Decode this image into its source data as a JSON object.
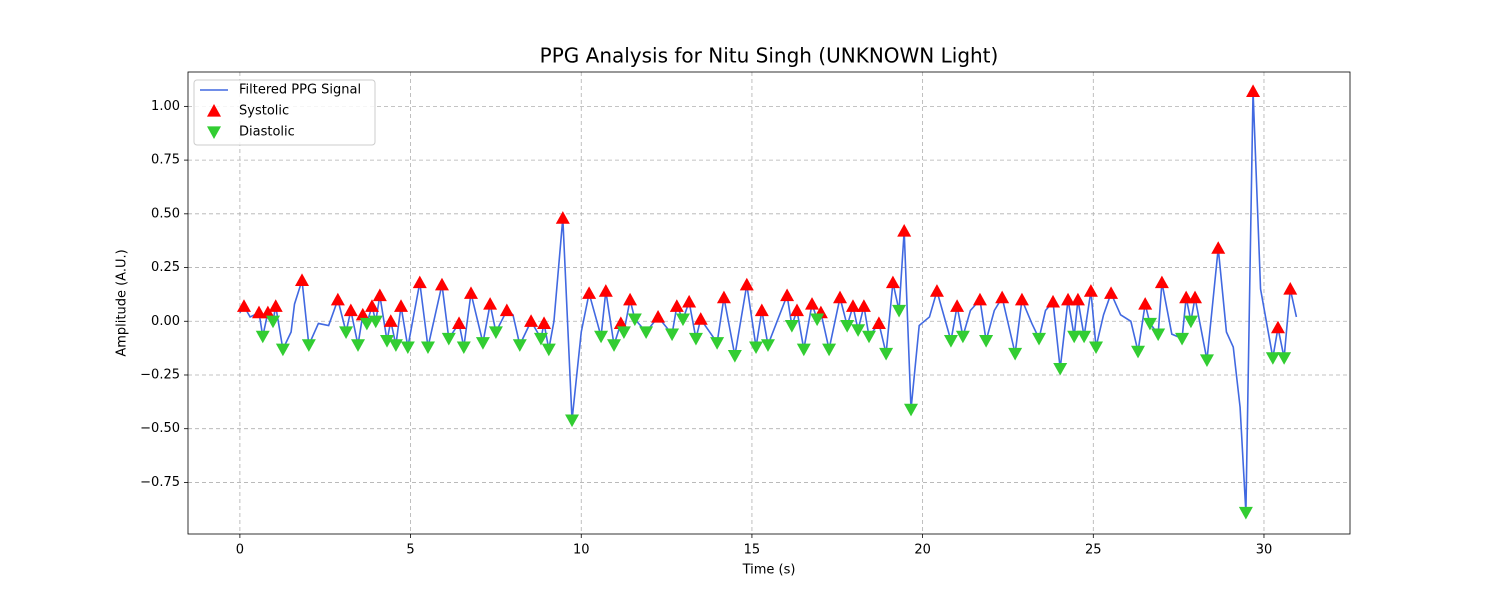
{
  "chart_data": {
    "type": "line",
    "title": "PPG Analysis for Nitu Singh (UNKNOWN Light)",
    "x_label": "Time (s)",
    "y_label": "Amplitude (A.U.)",
    "xlim": [
      -1.52,
      32.52
    ],
    "ylim": [
      -0.99,
      1.16
    ],
    "xticks": [
      0,
      5,
      10,
      15,
      20,
      25,
      30
    ],
    "yticks": [
      {
        "value": -0.75,
        "label": "−0.75"
      },
      {
        "value": -0.5,
        "label": "−0.50"
      },
      {
        "value": -0.25,
        "label": "−0.25"
      },
      {
        "value": 0,
        "label": "0.00"
      },
      {
        "value": 0.25,
        "label": "0.25"
      },
      {
        "value": 0.5,
        "label": "0.50"
      },
      {
        "value": 0.75,
        "label": "0.75"
      },
      {
        "value": 1,
        "label": "1.00"
      }
    ],
    "grid": true,
    "legend": "upper-left",
    "series": [
      {
        "name": "Filtered PPG Signal",
        "color": "#4169e1",
        "style": "line",
        "x": [
          0,
          0.12,
          0.3,
          0.56,
          0.67,
          0.82,
          0.97,
          1.05,
          1.26,
          1.5,
          1.6,
          1.82,
          2.02,
          2.3,
          2.6,
          2.87,
          3.11,
          3.25,
          3.46,
          3.6,
          3.72,
          3.87,
          3.98,
          4.1,
          4.31,
          4.42,
          4.57,
          4.72,
          4.92,
          5.27,
          5.51,
          5.92,
          6.12,
          6.42,
          6.56,
          6.77,
          7.12,
          7.33,
          7.5,
          7.82,
          8.0,
          8.2,
          8.53,
          8.82,
          8.91,
          9.05,
          9.2,
          9.46,
          9.73,
          10.0,
          10.23,
          10.58,
          10.72,
          10.96,
          11.16,
          11.25,
          11.43,
          11.57,
          11.9,
          12.25,
          12.66,
          12.8,
          12.98,
          13.16,
          13.36,
          13.5,
          13.98,
          14.18,
          14.5,
          14.85,
          15.12,
          15.29,
          15.47,
          16.03,
          16.17,
          16.32,
          16.52,
          16.76,
          16.91,
          17.02,
          17.26,
          17.58,
          17.79,
          17.96,
          18.11,
          18.28,
          18.43,
          18.72,
          18.93,
          19.13,
          19.31,
          19.46,
          19.66,
          19.9,
          20.2,
          20.42,
          20.83,
          21.01,
          21.18,
          21.4,
          21.68,
          21.86,
          22.1,
          22.33,
          22.71,
          22.91,
          23.2,
          23.41,
          23.6,
          23.82,
          24.03,
          24.26,
          24.44,
          24.55,
          24.73,
          24.93,
          25.08,
          25.3,
          25.52,
          25.8,
          26.1,
          26.31,
          26.52,
          26.66,
          26.9,
          27.01,
          27.3,
          27.6,
          27.72,
          27.86,
          27.98,
          28.33,
          28.66,
          28.9,
          29.1,
          29.3,
          29.47,
          29.68,
          29.9,
          30.26,
          30.41,
          30.59,
          30.77,
          30.95
        ],
        "values": [
          0.04,
          0.07,
          0.02,
          0.04,
          -0.07,
          0.04,
          0.0,
          0.07,
          -0.13,
          -0.05,
          0.08,
          0.19,
          -0.11,
          -0.01,
          -0.02,
          0.1,
          -0.05,
          0.05,
          -0.11,
          0.03,
          -0.01,
          0.07,
          0.0,
          0.12,
          -0.09,
          0.0,
          -0.11,
          0.07,
          -0.12,
          0.18,
          -0.12,
          0.17,
          -0.08,
          -0.01,
          -0.12,
          0.13,
          -0.1,
          0.08,
          -0.05,
          0.05,
          0.03,
          -0.11,
          0.0,
          -0.08,
          -0.01,
          -0.13,
          0.0,
          0.48,
          -0.46,
          -0.05,
          0.13,
          -0.07,
          0.14,
          -0.11,
          -0.01,
          -0.05,
          0.1,
          0.01,
          -0.05,
          0.02,
          -0.06,
          0.07,
          0.01,
          0.09,
          -0.08,
          0.01,
          -0.1,
          0.11,
          -0.16,
          0.17,
          -0.12,
          0.05,
          -0.11,
          0.12,
          -0.02,
          0.05,
          -0.13,
          0.08,
          0.01,
          0.04,
          -0.13,
          0.11,
          -0.02,
          0.07,
          -0.04,
          0.07,
          -0.07,
          -0.01,
          -0.15,
          0.18,
          0.05,
          0.42,
          -0.41,
          -0.02,
          0.02,
          0.14,
          -0.09,
          0.07,
          -0.07,
          0.05,
          0.1,
          -0.09,
          0.05,
          0.11,
          -0.15,
          0.1,
          -0.01,
          -0.08,
          0.05,
          0.09,
          -0.22,
          0.1,
          -0.07,
          0.1,
          -0.07,
          0.14,
          -0.12,
          0.03,
          0.13,
          0.03,
          0.0,
          -0.14,
          0.08,
          -0.01,
          -0.06,
          0.18,
          -0.06,
          -0.08,
          0.11,
          0.0,
          0.11,
          -0.18,
          0.34,
          -0.05,
          -0.12,
          -0.4,
          -0.89,
          1.07,
          0.15,
          -0.17,
          -0.03,
          -0.17,
          0.15,
          0.02
        ]
      },
      {
        "name": "Systolic",
        "color": "#ff0000",
        "style": "triangle-up",
        "x": [
          0.12,
          0.56,
          0.82,
          1.05,
          1.82,
          2.87,
          3.25,
          3.6,
          3.87,
          4.1,
          4.42,
          4.72,
          5.27,
          5.92,
          6.42,
          6.77,
          7.33,
          7.82,
          8.53,
          8.91,
          9.46,
          10.23,
          10.72,
          11.16,
          11.43,
          12.25,
          12.8,
          13.16,
          13.5,
          14.18,
          14.85,
          15.29,
          16.03,
          16.32,
          16.76,
          17.02,
          17.58,
          17.96,
          18.28,
          18.72,
          19.13,
          19.46,
          20.42,
          21.01,
          21.68,
          22.33,
          22.91,
          23.82,
          24.26,
          24.55,
          24.93,
          25.52,
          26.52,
          27.01,
          27.72,
          27.98,
          28.66,
          29.68,
          30.41,
          30.77
        ],
        "values": [
          0.07,
          0.04,
          0.04,
          0.07,
          0.19,
          0.1,
          0.05,
          0.03,
          0.07,
          0.12,
          0.0,
          0.07,
          0.18,
          0.17,
          -0.01,
          0.13,
          0.08,
          0.05,
          0.0,
          -0.01,
          0.48,
          0.13,
          0.14,
          -0.01,
          0.1,
          0.02,
          0.07,
          0.09,
          0.01,
          0.11,
          0.17,
          0.05,
          0.12,
          0.05,
          0.08,
          0.04,
          0.11,
          0.07,
          0.07,
          -0.01,
          0.18,
          0.42,
          0.14,
          0.07,
          0.1,
          0.11,
          0.1,
          0.09,
          0.1,
          0.1,
          0.14,
          0.13,
          0.08,
          0.18,
          0.11,
          0.11,
          0.34,
          1.07,
          -0.03,
          0.15
        ]
      },
      {
        "name": "Diastolic",
        "color": "#32cd32",
        "style": "triangle-down",
        "x": [
          0.67,
          0.97,
          1.26,
          2.02,
          3.11,
          3.46,
          3.72,
          3.98,
          4.31,
          4.57,
          4.92,
          5.51,
          6.12,
          6.56,
          7.12,
          7.5,
          8.2,
          8.82,
          9.05,
          9.73,
          10.58,
          10.96,
          11.25,
          11.57,
          11.9,
          12.66,
          12.98,
          13.36,
          13.98,
          14.5,
          15.12,
          15.47,
          16.17,
          16.52,
          16.91,
          17.26,
          17.79,
          18.11,
          18.43,
          18.93,
          19.31,
          19.66,
          20.83,
          21.18,
          21.86,
          22.71,
          23.41,
          24.03,
          24.44,
          24.73,
          25.08,
          26.31,
          26.66,
          26.9,
          27.6,
          27.86,
          28.33,
          29.47,
          30.26,
          30.59
        ],
        "values": [
          -0.07,
          0.0,
          -0.13,
          -0.11,
          -0.05,
          -0.11,
          -0.01,
          0.0,
          -0.09,
          -0.11,
          -0.12,
          -0.12,
          -0.08,
          -0.12,
          -0.1,
          -0.05,
          -0.11,
          -0.08,
          -0.13,
          -0.46,
          -0.07,
          -0.11,
          -0.05,
          0.01,
          -0.05,
          -0.06,
          0.01,
          -0.08,
          -0.1,
          -0.16,
          -0.12,
          -0.11,
          -0.02,
          -0.13,
          0.01,
          -0.13,
          -0.02,
          -0.04,
          -0.07,
          -0.15,
          0.05,
          -0.41,
          -0.09,
          -0.07,
          -0.09,
          -0.15,
          -0.08,
          -0.22,
          -0.07,
          -0.07,
          -0.12,
          -0.14,
          -0.01,
          -0.06,
          -0.08,
          0.0,
          -0.18,
          -0.89,
          -0.17,
          -0.17
        ]
      }
    ]
  }
}
